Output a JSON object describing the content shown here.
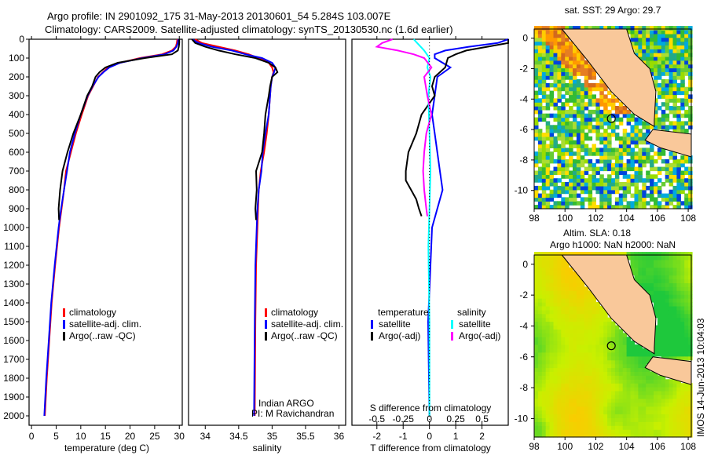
{
  "header": {
    "title_line1": "Argo profile: IN 2901092_175 31-May-2013 20130601_54 5.284S 103.007E",
    "title_line2": "Climatology: CARS2009. Satellite-adjusted climatology: synTS_20130530.nc (1.6d earlier)"
  },
  "colors": {
    "climatology": "#ff0000",
    "satellite": "#0000ff",
    "argo": "#000000",
    "sat_salinity": "#00ffff",
    "argo_salinity": "#ff00ff",
    "land": "#f9c89a"
  },
  "chart_data": [
    {
      "type": "line",
      "name": "temperature-profile",
      "xlabel": "temperature (deg C)",
      "ylabel": "",
      "xlim": [
        -0.5,
        30.6
      ],
      "ylim": [
        2050,
        0
      ],
      "xticks": [
        0,
        5,
        10,
        15,
        20,
        25,
        30
      ],
      "yticks": [
        0,
        100,
        200,
        300,
        400,
        500,
        600,
        700,
        800,
        900,
        1000,
        1100,
        1200,
        1300,
        1400,
        1500,
        1600,
        1700,
        1800,
        1900,
        2000
      ],
      "legend": [
        "climatology",
        "satellite-adj. clim.",
        "Argo(..raw -QC)"
      ],
      "series": [
        {
          "name": "climatology",
          "color": "#ff0000",
          "depth": [
            0,
            20,
            40,
            60,
            80,
            100,
            125,
            150,
            175,
            200,
            250,
            300,
            400,
            500,
            600,
            700,
            800,
            900,
            1000,
            1200,
            1400,
            1600,
            1800,
            2000
          ],
          "values": [
            29.6,
            29.5,
            29.3,
            28.5,
            26.5,
            22,
            18,
            15.5,
            14.5,
            13.5,
            12.5,
            11.5,
            10.2,
            9,
            8,
            7,
            6.6,
            6.1,
            5.6,
            4.8,
            4.1,
            3.6,
            3.1,
            2.7
          ]
        },
        {
          "name": "satellite-adj. clim.",
          "color": "#0000ff",
          "depth": [
            0,
            20,
            40,
            60,
            80,
            100,
            125,
            150,
            175,
            200,
            250,
            300,
            400,
            500,
            600,
            700,
            800,
            900,
            1000,
            1200,
            1400,
            1600,
            1800,
            2000
          ],
          "values": [
            29.8,
            29.7,
            29.4,
            28.8,
            27,
            22.5,
            18,
            15.8,
            14.6,
            13.6,
            12.4,
            11.4,
            10,
            8.8,
            7.8,
            7.2,
            6.6,
            6,
            5.5,
            4.7,
            4.0,
            3.5,
            3.0,
            2.6
          ]
        },
        {
          "name": "Argo(..raw -QC)",
          "color": "#000000",
          "depth": [
            0,
            20,
            40,
            60,
            80,
            100,
            125,
            150,
            175,
            200,
            250,
            300,
            400,
            500,
            600,
            700,
            800,
            900,
            960
          ],
          "values": [
            30,
            30,
            29.9,
            29.7,
            28.5,
            23,
            17.5,
            15,
            13.8,
            13,
            12.3,
            11.3,
            10,
            8.5,
            7.3,
            6.3,
            5.8,
            5.5,
            5.6
          ]
        }
      ]
    },
    {
      "type": "line",
      "name": "salinity-profile",
      "xlabel": "salinity",
      "xlim": [
        33.75,
        36.1
      ],
      "ylim": [
        2050,
        0
      ],
      "xticks": [
        34,
        34.5,
        35,
        35.5,
        36
      ],
      "legend": [
        "climatology",
        "satellite-adj. clim.",
        "Argo(..raw -QC)"
      ],
      "annotation": [
        "Indian ARGO",
        "PI: M Ravichandran"
      ],
      "series": [
        {
          "name": "climatology",
          "color": "#ff0000",
          "depth": [
            0,
            20,
            40,
            60,
            80,
            100,
            125,
            150,
            175,
            200,
            250,
            300,
            400,
            500,
            600,
            700,
            800,
            900,
            1000,
            1200,
            1500,
            2000
          ],
          "values": [
            33.85,
            33.95,
            34.2,
            34.45,
            34.65,
            34.8,
            34.95,
            35.0,
            35.02,
            35.0,
            34.98,
            34.97,
            34.95,
            34.92,
            34.88,
            34.83,
            34.8,
            34.79,
            34.78,
            34.76,
            34.75,
            34.74
          ]
        },
        {
          "name": "satellite-adj. clim.",
          "color": "#0000ff",
          "depth": [
            0,
            20,
            40,
            60,
            80,
            100,
            125,
            150,
            175,
            200,
            250,
            300,
            400,
            500,
            600,
            700,
            800,
            900,
            1000,
            1200,
            1500,
            2000
          ],
          "values": [
            33.8,
            33.9,
            34.1,
            34.4,
            34.6,
            34.85,
            35.0,
            35.05,
            35.03,
            35.0,
            34.98,
            34.97,
            34.95,
            34.9,
            34.86,
            34.84,
            34.8,
            34.78,
            34.77,
            34.75,
            34.74,
            34.73
          ]
        },
        {
          "name": "Argo(..raw -QC)",
          "color": "#000000",
          "depth": [
            0,
            20,
            40,
            60,
            80,
            100,
            125,
            150,
            175,
            200,
            250,
            300,
            400,
            500,
            600,
            700,
            800,
            900,
            960
          ],
          "values": [
            33.8,
            33.85,
            34.0,
            34.2,
            34.45,
            34.75,
            34.95,
            35.05,
            35.08,
            35.0,
            34.97,
            34.95,
            34.9,
            34.88,
            34.85,
            34.76,
            34.77,
            34.75,
            34.76
          ]
        }
      ]
    },
    {
      "type": "line",
      "name": "difference-profile",
      "xlabel": "T difference from climatology",
      "x2label": "S difference from climatology",
      "xlim": [
        -2.95,
        3.0
      ],
      "ylim": [
        2050,
        0
      ],
      "xticks": [
        -2,
        -1,
        0,
        1,
        2
      ],
      "x2ticks": [
        -0.5,
        -0.25,
        0,
        0.25,
        0.5
      ],
      "x2tick_labels": [
        "-0.5",
        "-0.25",
        "0",
        "0.25",
        "0.5"
      ],
      "s_to_t_scale": 4,
      "legend_temperature_title": "temperature",
      "legend_salinity_title": "salinity",
      "legend": [
        "satellite",
        "Argo(-adj)",
        "satellite",
        "Argo(-adj)"
      ],
      "series": [
        {
          "name": "temperature satellite",
          "color": "#0000ff",
          "units": "T",
          "depth": [
            0,
            20,
            40,
            60,
            80,
            100,
            150,
            200,
            300,
            400,
            500,
            600,
            700,
            800,
            900,
            1000,
            1500,
            2000
          ],
          "values": [
            3,
            2.6,
            1.5,
            0.6,
            0.2,
            0.2,
            0.8,
            0.3,
            0.2,
            0.1,
            0.2,
            0.3,
            0.4,
            0.5,
            0.3,
            0.1,
            -0.05,
            0
          ]
        },
        {
          "name": "temperature Argo(-adj)",
          "color": "#000000",
          "units": "T",
          "depth": [
            0,
            20,
            40,
            60,
            80,
            100,
            150,
            200,
            250,
            300,
            400,
            500,
            600,
            700,
            750,
            800,
            850,
            900,
            940
          ],
          "values": [
            3,
            3,
            2.2,
            1.4,
            1.0,
            0.7,
            0.6,
            0.2,
            0.1,
            0.2,
            -0.3,
            -0.5,
            -0.8,
            -0.9,
            -0.9,
            -0.7,
            -0.5,
            -0.4,
            -0.3
          ]
        },
        {
          "name": "salinity satellite",
          "color": "#00ffff",
          "units": "S",
          "depth": [
            0,
            30,
            60,
            100,
            150,
            200,
            300,
            500,
            700,
            900,
            1100,
            1500,
            2000
          ],
          "values": [
            -0.15,
            -0.1,
            -0.05,
            0.0,
            -0.02,
            0.01,
            -0.01,
            0.0,
            0.01,
            0.0,
            -0.01,
            0.0,
            0.0
          ]
        },
        {
          "name": "salinity Argo(-adj)",
          "color": "#ff00ff",
          "units": "S",
          "depth": [
            0,
            20,
            40,
            60,
            80,
            100,
            150,
            200,
            300,
            400,
            500,
            600,
            700,
            800,
            900,
            940
          ],
          "values": [
            -0.35,
            -0.45,
            -0.5,
            -0.3,
            -0.15,
            -0.05,
            0.02,
            -0.05,
            -0.02,
            0.02,
            -0.03,
            -0.05,
            -0.06,
            -0.05,
            -0.03,
            -0.02
          ]
        }
      ]
    },
    {
      "type": "heatmap",
      "name": "sst-map",
      "title": "sat. SST: 29 Argo: 29.7",
      "xlim": [
        98,
        108.2
      ],
      "ylim": [
        -11.2,
        0.6
      ],
      "xticks": [
        98,
        100,
        102,
        104,
        106,
        108
      ],
      "yticks": [
        0,
        -2,
        -4,
        -6,
        -8,
        -10
      ],
      "marker": {
        "lon": 103.007,
        "lat": -5.284
      }
    },
    {
      "type": "heatmap",
      "name": "sla-map",
      "title_line1": "Altim. SLA: 0.18",
      "title_line2": "Argo h1000: NaN h2000: NaN",
      "xlim": [
        98,
        108.2
      ],
      "ylim": [
        -11.2,
        0.6
      ],
      "xticks": [
        98,
        100,
        102,
        104,
        106,
        108
      ],
      "yticks": [
        0,
        -2,
        -4,
        -6,
        -8,
        -10
      ],
      "marker": {
        "lon": 103.007,
        "lat": -5.284
      }
    }
  ],
  "footer": {
    "timestamp": "IMOS 14-Jun-2013 10:04:03"
  }
}
